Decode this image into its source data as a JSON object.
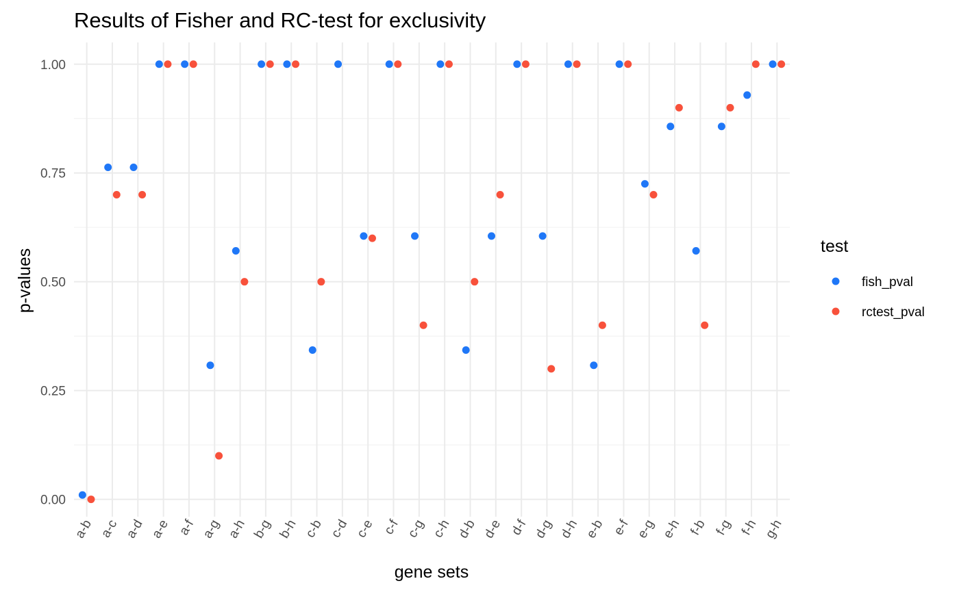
{
  "chart_data": {
    "type": "scatter",
    "title": "Results of Fisher and RC-test for exclusivity",
    "xlabel": "gene sets",
    "ylabel": "p-values",
    "ylim": [
      -0.04,
      1.05
    ],
    "yticks": [
      0,
      0.25,
      0.5,
      0.75,
      1
    ],
    "ytick_labels": [
      "0.00",
      "0.25",
      "0.50",
      "0.75",
      "1.00"
    ],
    "grid": true,
    "legend": {
      "title": "test",
      "position": "right"
    },
    "categories": [
      "a-b",
      "a-c",
      "a-d",
      "a-e",
      "a-f",
      "a-g",
      "a-h",
      "b-g",
      "b-h",
      "c-b",
      "c-d",
      "c-e",
      "c-f",
      "c-g",
      "c-h",
      "d-b",
      "d-e",
      "d-f",
      "d-g",
      "d-h",
      "e-b",
      "e-f",
      "e-g",
      "e-h",
      "f-b",
      "f-g",
      "f-h",
      "g-h"
    ],
    "series": [
      {
        "name": "fish_pval",
        "color": "#1f77f7",
        "values": [
          0.01,
          0.763,
          0.763,
          1.0,
          1.0,
          0.308,
          0.571,
          1.0,
          1.0,
          0.343,
          1.0,
          0.605,
          1.0,
          0.605,
          1.0,
          0.343,
          0.605,
          1.0,
          0.605,
          1.0,
          0.308,
          1.0,
          0.725,
          0.857,
          0.571,
          0.857,
          0.929,
          1.0
        ]
      },
      {
        "name": "rctest_pval",
        "color": "#f8513b",
        "values": [
          0.0,
          0.7,
          0.7,
          1.0,
          1.0,
          0.1,
          0.5,
          1.0,
          1.0,
          0.5,
          null,
          0.6,
          1.0,
          0.4,
          1.0,
          0.5,
          0.7,
          1.0,
          0.3,
          1.0,
          0.4,
          1.0,
          0.7,
          0.9,
          0.4,
          0.9,
          1.0,
          1.0
        ]
      }
    ]
  }
}
